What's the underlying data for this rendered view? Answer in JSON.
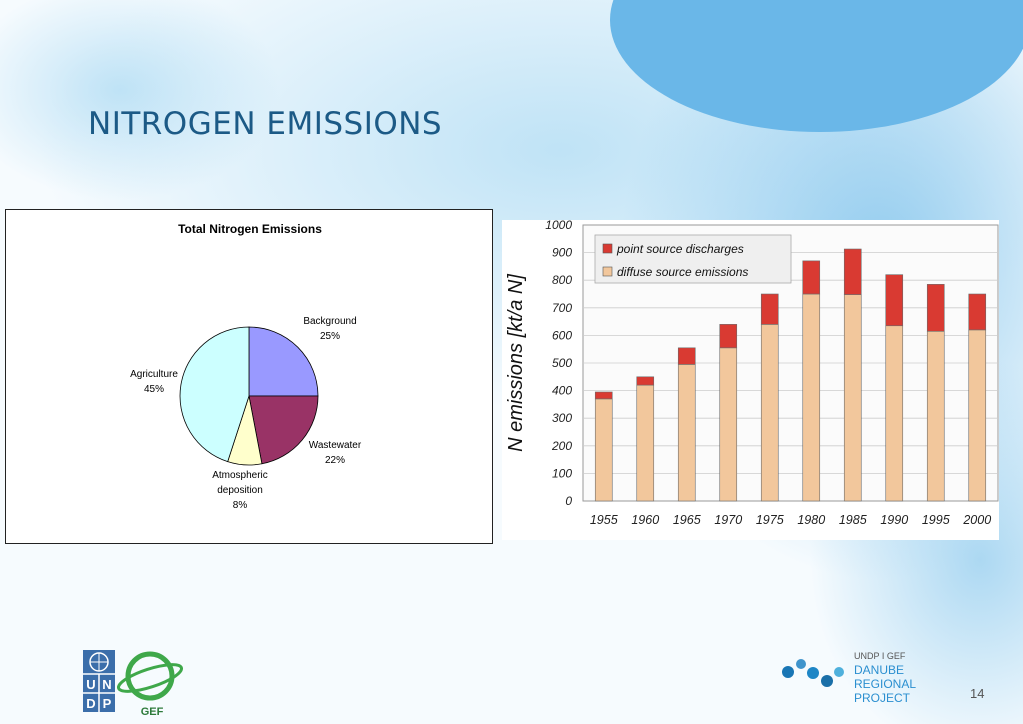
{
  "slide": {
    "title": "NITROGEN EMISSIONS",
    "page_number": "14"
  },
  "footer": {
    "undp_letters": [
      "U",
      "N",
      "D",
      "P"
    ],
    "gef_label": "GEF",
    "drp_lines": [
      "UNDP I GEF",
      "DANUBE",
      "REGIONAL",
      "PROJECT"
    ]
  },
  "colors": {
    "title": "#1c5a86",
    "bg_blue": "#a9d7f2",
    "pie_background": "#9999ff",
    "pie_wastewater": "#993366",
    "pie_atmospheric": "#ffffcc",
    "pie_agriculture": "#ccffff",
    "bar_point": "#d93a32",
    "bar_diffuse": "#f2c79c"
  },
  "chart_data": [
    {
      "type": "pie",
      "title": "Total Nitrogen Emissions",
      "slices": [
        {
          "label": "Background",
          "value": 25,
          "pct_label": "25%",
          "color": "#9999ff"
        },
        {
          "label": "Wastewater",
          "value": 22,
          "pct_label": "22%",
          "color": "#993366"
        },
        {
          "label": "Atmospheric deposition",
          "label_lines": [
            "Atmospheric",
            "deposition"
          ],
          "value": 8,
          "pct_label": "8%",
          "color": "#ffffcc"
        },
        {
          "label": "Agriculture",
          "value": 45,
          "pct_label": "45%",
          "color": "#ccffff"
        }
      ]
    },
    {
      "type": "bar",
      "stacked": true,
      "title": "",
      "xlabel": "",
      "ylabel": "N emissions [kt/a N]",
      "ylim": [
        0,
        1000
      ],
      "yticks": [
        0,
        100,
        200,
        300,
        400,
        500,
        600,
        700,
        800,
        900,
        1000
      ],
      "grid": true,
      "legend_position": "top-left",
      "categories": [
        "1955",
        "1960",
        "1965",
        "1970",
        "1975",
        "1980",
        "1985",
        "1990",
        "1995",
        "2000"
      ],
      "series": [
        {
          "name": "diffuse source emissions",
          "color": "#f2c79c",
          "values": [
            370,
            420,
            495,
            555,
            640,
            750,
            748,
            635,
            615,
            620
          ]
        },
        {
          "name": "point source discharges",
          "color": "#d93a32",
          "values": [
            25,
            30,
            60,
            85,
            110,
            120,
            165,
            185,
            170,
            130
          ]
        }
      ],
      "legend_order": [
        "point source discharges",
        "diffuse source emissions"
      ]
    }
  ]
}
